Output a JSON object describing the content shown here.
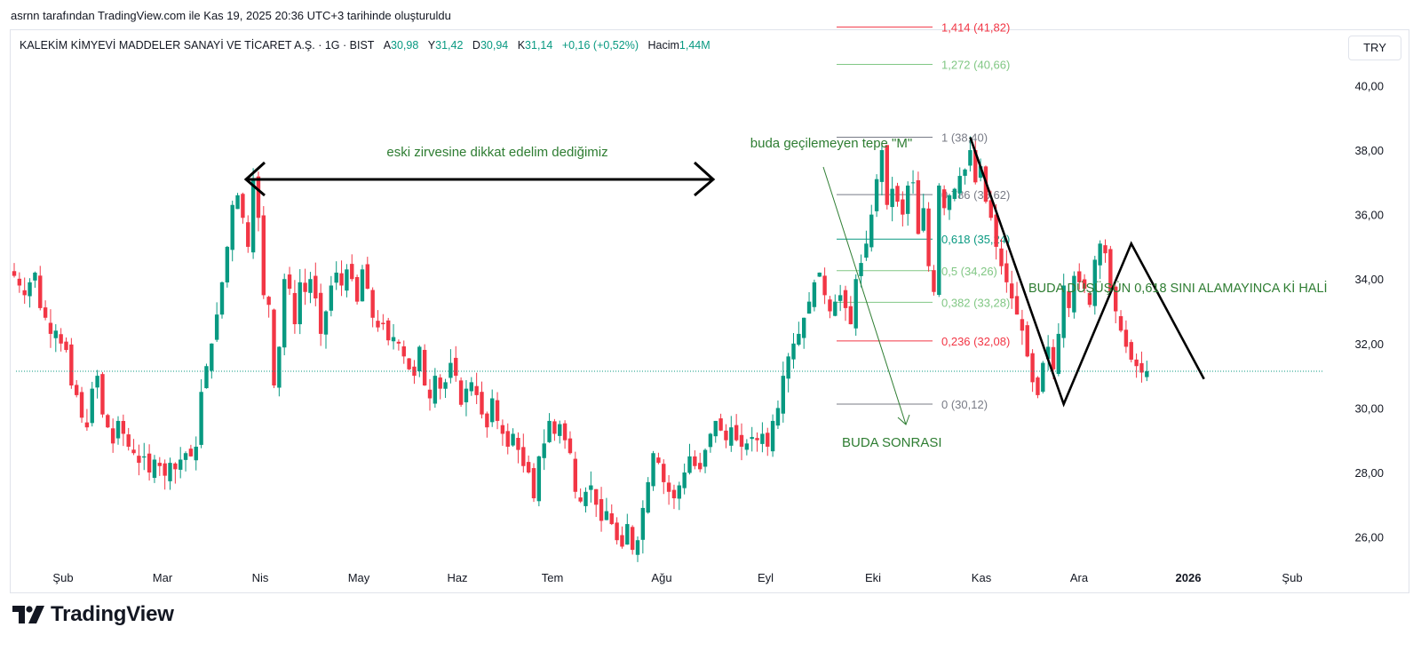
{
  "header": {
    "attribution": "asrnn tarafından TradingView.com ile Kas 19, 2025 20:36 UTC+3 tarihinde oluşturuldu"
  },
  "symbol": {
    "name": "KALEKİM KİMYEVİ MADDELER SANAYİ VE TİCARET A.Ş. · 1G · BIST",
    "open_label": "A",
    "open": "30,98",
    "high_label": "Y",
    "high": "31,42",
    "low_label": "D",
    "low": "30,94",
    "close_label": "K",
    "close": "31,14",
    "change": "+0,16 (+0,52%)",
    "volume_label": "Hacim",
    "volume": "1,44M"
  },
  "currency_button": "TRY",
  "footer": {
    "brand": "TradingView"
  },
  "colors": {
    "up": "#089981",
    "down": "#f23645",
    "grid": "#e0e3eb",
    "annotation": "#2e7d32",
    "fib_red": "#f23645",
    "fib_green": "#81c784",
    "fib_gray": "#787b86",
    "fib_teal": "#089981"
  },
  "chart_data": {
    "type": "candlestick",
    "y_axis": {
      "range": [
        25.3,
        41.5
      ],
      "ticks": [
        "26,00",
        "28,00",
        "30,00",
        "32,00",
        "34,00",
        "36,00",
        "38,00",
        "40,00"
      ],
      "tick_values": [
        26,
        28,
        30,
        32,
        34,
        36,
        38,
        40
      ],
      "position": "right"
    },
    "x_axis": {
      "labels": [
        "Şub",
        "Mar",
        "Nis",
        "May",
        "Haz",
        "Tem",
        "Ağu",
        "Eyl",
        "Eki",
        "Kas",
        "Ara",
        "2026",
        "Şub"
      ]
    },
    "last_price": 31.14,
    "fibonacci": {
      "levels": [
        {
          "label": "1,414 (41,82)",
          "value": 41.82,
          "color": "#f23645"
        },
        {
          "label": "1,272 (40,66)",
          "value": 40.66,
          "color": "#81c784"
        },
        {
          "label": "1 (38,40)",
          "value": 38.4,
          "color": "#787b86"
        },
        {
          "label": "0,786 (36,62)",
          "value": 36.62,
          "color": "#787b86"
        },
        {
          "label": "0,618 (35,24)",
          "value": 35.24,
          "color": "#089981"
        },
        {
          "label": "0,5 (34,26)",
          "value": 34.26,
          "color": "#81c784"
        },
        {
          "label": "0,382 (33,28)",
          "value": 33.28,
          "color": "#81c784"
        },
        {
          "label": "0,236 (32,08)",
          "value": 32.08,
          "color": "#f23645"
        },
        {
          "label": "0 (30,12)",
          "value": 30.12,
          "color": "#787b86"
        }
      ]
    },
    "annotations": [
      {
        "text": "eski zirvesine dikkat edelim dediğimiz"
      },
      {
        "text": "buda geçilemeyen tepe \"M\""
      },
      {
        "text": "BUDA DÜŞÜŞÜN 0,618 SINI ALAMAYINCA Kİ HALİ"
      },
      {
        "text": "BUDA SONRASI"
      }
    ],
    "pattern_points": [
      38.4,
      30.12,
      35.1,
      30.9
    ],
    "closes": [
      34.1,
      33.8,
      33.5,
      33.9,
      34.2,
      33.1,
      32.8,
      32.3,
      32.4,
      32.0,
      31.8,
      30.7,
      30.4,
      29.7,
      29.4,
      30.6,
      31.0,
      29.8,
      29.4,
      28.9,
      29.6,
      29.2,
      28.8,
      28.6,
      28.3,
      28.5,
      28.0,
      28.4,
      28.2,
      27.9,
      28.3,
      28.1,
      28.4,
      28.6,
      28.5,
      28.8,
      30.5,
      31.3,
      32.0,
      32.9,
      33.9,
      35.0,
      36.3,
      36.6,
      35.9,
      35.0,
      37.1,
      35.9,
      33.5,
      33.2,
      30.7,
      31.9,
      34.0,
      33.7,
      32.6,
      33.9,
      33.6,
      34.0,
      33.4,
      32.3,
      33.0,
      33.8,
      34.2,
      33.8,
      34.3,
      34.0,
      33.3,
      34.3,
      33.7,
      32.8,
      32.5,
      32.6,
      32.1,
      32.2,
      32.0,
      31.6,
      31.2,
      31.0,
      31.9,
      30.7,
      30.3,
      31.0,
      30.6,
      30.8,
      31.4,
      31.0,
      30.1,
      30.6,
      30.8,
      30.4,
      29.8,
      29.4,
      30.3,
      29.6,
      29.2,
      28.8,
      29.2,
      28.7,
      28.2,
      28.0,
      27.2,
      28.5,
      28.9,
      29.6,
      29.2,
      29.5,
      29.0,
      28.6,
      27.4,
      27.1,
      27.4,
      27.6,
      27.0,
      26.5,
      26.8,
      26.4,
      25.9,
      25.7,
      26.4,
      25.6,
      25.9,
      26.9,
      27.7,
      28.6,
      28.3,
      27.7,
      27.4,
      27.2,
      27.6,
      28.0,
      28.5,
      28.2,
      28.1,
      28.7,
      29.2,
      29.6,
      29.3,
      29.0,
      29.4,
      29.0,
      28.8,
      28.9,
      29.1,
      29.0,
      29.2,
      28.8,
      29.6,
      30.0,
      31.0,
      31.6,
      32.0,
      32.3,
      32.8,
      33.3,
      33.9,
      34.2,
      33.5,
      33.0,
      33.3,
      33.5,
      33.1,
      32.6,
      34.0,
      34.5,
      35.1,
      36.0,
      37.1,
      38.0,
      36.3,
      36.8,
      36.4,
      36.0,
      36.9,
      37.0,
      35.4,
      36.2,
      34.4,
      33.6,
      36.9,
      36.2,
      36.6,
      36.8,
      37.2,
      37.4,
      38.0,
      37.0,
      37.5,
      36.4,
      35.9,
      35.0,
      34.4,
      33.9,
      33.4,
      32.9,
      32.4,
      31.6,
      30.8,
      30.4,
      31.4,
      31.9,
      31.2,
      32.3,
      33.8,
      33.1,
      34.1,
      33.9,
      33.7,
      33.2,
      34.6,
      35.1,
      34.8,
      33.6,
      33.0,
      32.4,
      31.9,
      31.5,
      31.3,
      31.1,
      31.14
    ]
  }
}
